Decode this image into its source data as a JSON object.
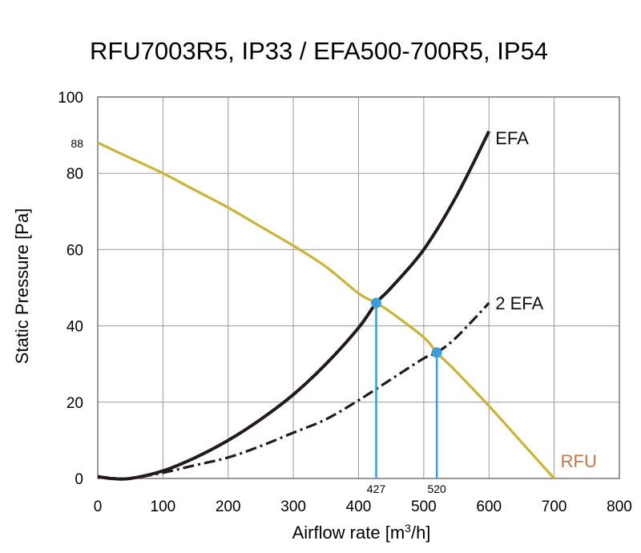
{
  "chart_data": {
    "type": "line",
    "title": "RFU7003R5, IP33 / EFA500-700R5, IP54",
    "xlabel": "Airflow rate [m³/h]",
    "xlabel_base": "Airflow rate [m",
    "xlabel_sup": "3",
    "xlabel_tail": "/h]",
    "ylabel": "Static Pressure [Pa]",
    "xlim": [
      0,
      800
    ],
    "ylim": [
      0,
      100
    ],
    "x_ticks": [
      "0",
      "100",
      "200",
      "300",
      "400",
      "500",
      "600",
      "700",
      "800"
    ],
    "y_ticks": [
      "0",
      "20",
      "40",
      "60",
      "80",
      "100"
    ],
    "y_extra_tick": {
      "value": 88,
      "label": "88"
    },
    "grid": true,
    "series": [
      {
        "name": "RFU",
        "color": "#c9b43a",
        "label_color": "#c0784a",
        "style": "solid",
        "x": [
          0,
          50,
          100,
          150,
          200,
          250,
          300,
          350,
          400,
          427,
          450,
          500,
          520,
          550,
          600,
          650,
          700
        ],
        "y": [
          88,
          84,
          80,
          75.5,
          71,
          66,
          61,
          55.5,
          48.5,
          46,
          43.5,
          37,
          33,
          28,
          19,
          9.5,
          0
        ]
      },
      {
        "name": "EFA",
        "color": "#231a1a",
        "style": "solid",
        "x": [
          0,
          20,
          50,
          100,
          150,
          200,
          250,
          300,
          350,
          400,
          427,
          450,
          500,
          550,
          600
        ],
        "y": [
          0.5,
          0,
          0,
          2,
          5.5,
          10,
          15.5,
          22,
          30,
          39.5,
          46,
          50,
          60,
          74,
          91
        ]
      },
      {
        "name": "2 EFA",
        "color": "#231a1a",
        "style": "dashdot",
        "x": [
          0,
          30,
          50,
          100,
          150,
          200,
          250,
          300,
          350,
          400,
          450,
          500,
          520,
          550,
          600
        ],
        "y": [
          0.5,
          0,
          0,
          1.5,
          3.5,
          5.5,
          8.5,
          12,
          15.5,
          20.5,
          26,
          31.5,
          33,
          37,
          46
        ]
      }
    ],
    "operating_points": [
      {
        "x": 427,
        "y": 46,
        "label": "427"
      },
      {
        "x": 520,
        "y": 33,
        "label": "520"
      }
    ],
    "point_color": "#3d9dd9"
  }
}
